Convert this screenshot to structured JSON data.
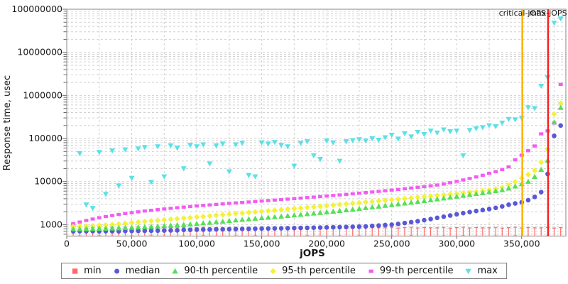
{
  "chart_data": {
    "type": "scatter",
    "title": "",
    "xlabel": "jOPS",
    "ylabel": "Response time, usec",
    "grid": "dashed",
    "legend_position": "bottom",
    "x_axis": {
      "min": 0,
      "max": 384000,
      "major_step": 50000,
      "minor_step": 25000,
      "tick_labels": [
        "0",
        "50,000",
        "100,000",
        "150,000",
        "200,000",
        "250,000",
        "300,000",
        "350,000"
      ]
    },
    "y_axis": {
      "scale": "log",
      "min": 545,
      "max": 100000000,
      "tick_labels": [
        "1000",
        "10000",
        "100000",
        "1000000",
        "10000000",
        "100000000"
      ]
    },
    "annotations": [
      {
        "label": "critical-jOPS",
        "x": 350500,
        "color": "#ffb400"
      },
      {
        "label": "max-jOPS",
        "x": 370300,
        "color": "#fb2020"
      }
    ],
    "x_start": 5000,
    "x_step": 5000,
    "series": [
      {
        "name": "min",
        "marker": "square",
        "plot_marker": "errorbar",
        "color": "#ff6b6b",
        "values": [
          700,
          715,
          690,
          705,
          720,
          695,
          710,
          700,
          700,
          715,
          690,
          705,
          720,
          695,
          710,
          700,
          700,
          715,
          690,
          705,
          720,
          695,
          710,
          700,
          700,
          715,
          690,
          705,
          720,
          695,
          710,
          700,
          700,
          715,
          690,
          705,
          720,
          695,
          710,
          700,
          700,
          715,
          690,
          705,
          720,
          695,
          710,
          700,
          700,
          715,
          690,
          705,
          720,
          695,
          710,
          700,
          700,
          715,
          690,
          705,
          720,
          695,
          710,
          700,
          700,
          715,
          690,
          705,
          720,
          695,
          710,
          700,
          700,
          715,
          690,
          705
        ]
      },
      {
        "name": "median",
        "marker": "circle",
        "plot_marker": "circle",
        "color": "#5858d8",
        "values": [
          700,
          705,
          702,
          708,
          700,
          706,
          703,
          700,
          712,
          715,
          718,
          720,
          723,
          726,
          730,
          734,
          738,
          755,
          760,
          764,
          768,
          772,
          776,
          780,
          785,
          790,
          795,
          800,
          805,
          810,
          814,
          818,
          823,
          828,
          833,
          838,
          844,
          850,
          856,
          862,
          869,
          876,
          884,
          892,
          901,
          910,
          935,
          955,
          978,
          1000,
          1040,
          1090,
          1140,
          1200,
          1270,
          1350,
          1440,
          1530,
          1630,
          1740,
          1850,
          1960,
          2070,
          2180,
          2300,
          2450,
          2650,
          2900,
          3100,
          3300,
          3700,
          4400,
          5700,
          15000,
          115000,
          200000
        ]
      },
      {
        "name": "90-th percentile",
        "marker": "triangle-up",
        "plot_marker": "triangle-up",
        "color": "#55e055",
        "values": [
          790,
          795,
          800,
          805,
          810,
          815,
          825,
          835,
          845,
          860,
          875,
          890,
          905,
          920,
          940,
          960,
          980,
          1005,
          1030,
          1060,
          1090,
          1120,
          1155,
          1190,
          1230,
          1270,
          1310,
          1350,
          1390,
          1430,
          1470,
          1515,
          1560,
          1610,
          1660,
          1715,
          1775,
          1835,
          1895,
          1960,
          2030,
          2105,
          2185,
          2270,
          2360,
          2455,
          2555,
          2660,
          2770,
          2885,
          3005,
          3135,
          3270,
          3415,
          3570,
          3735,
          3910,
          4100,
          4300,
          4510,
          4730,
          4960,
          5200,
          5460,
          5740,
          6050,
          6400,
          7000,
          7800,
          8800,
          10000,
          13000,
          19000,
          31000,
          240000,
          520000
        ]
      },
      {
        "name": "95-th percentile",
        "marker": "diamond",
        "plot_marker": "diamond",
        "color": "#f2f23c",
        "values": [
          900,
          915,
          930,
          945,
          960,
          980,
          1000,
          1030,
          1070,
          1110,
          1150,
          1185,
          1220,
          1255,
          1290,
          1330,
          1370,
          1410,
          1455,
          1500,
          1545,
          1590,
          1640,
          1690,
          1740,
          1795,
          1850,
          1905,
          1965,
          2025,
          2085,
          2150,
          2215,
          2285,
          2355,
          2430,
          2505,
          2585,
          2665,
          2750,
          2835,
          2925,
          3020,
          3115,
          3215,
          3320,
          3425,
          3535,
          3650,
          3770,
          3890,
          4020,
          4150,
          4290,
          4430,
          4580,
          4730,
          4890,
          5060,
          5230,
          5410,
          5600,
          5800,
          6050,
          6350,
          6750,
          7300,
          8200,
          9800,
          12000,
          14500,
          18000,
          28000,
          56000,
          370000,
          650000
        ]
      },
      {
        "name": "99-th percentile",
        "marker": "dash",
        "plot_marker": "rect",
        "color": "#f25cf2",
        "values": [
          1050,
          1150,
          1250,
          1350,
          1450,
          1540,
          1630,
          1720,
          1810,
          1900,
          1985,
          2070,
          2150,
          2230,
          2310,
          2390,
          2470,
          2550,
          2630,
          2710,
          2790,
          2870,
          2950,
          3030,
          3110,
          3190,
          3270,
          3355,
          3440,
          3530,
          3620,
          3715,
          3810,
          3910,
          4015,
          4125,
          4240,
          4360,
          4485,
          4615,
          4750,
          4895,
          5045,
          5200,
          5365,
          5540,
          5725,
          5920,
          6125,
          6340,
          6570,
          6815,
          7075,
          7350,
          7645,
          7960,
          8300,
          8800,
          9400,
          10100,
          10900,
          11800,
          12800,
          14000,
          15500,
          17000,
          19000,
          22000,
          32000,
          41000,
          52000,
          67000,
          128000,
          150000,
          228000,
          1800000
        ]
      },
      {
        "name": "max",
        "marker": "triangle-down",
        "plot_marker": "triangle-down",
        "color": "#5ce0e8",
        "values": [
          850,
          45000,
          2900,
          2400,
          48000,
          5100,
          52000,
          8000,
          55000,
          12000,
          58000,
          62000,
          9700,
          65000,
          13000,
          68000,
          60000,
          20000,
          70000,
          65000,
          72000,
          26000,
          68000,
          75000,
          17000,
          72000,
          78000,
          14000,
          13000,
          80000,
          75000,
          82000,
          70000,
          65000,
          23000,
          78000,
          85000,
          40000,
          33000,
          88000,
          80000,
          30000,
          85000,
          90000,
          95000,
          88000,
          100000,
          92000,
          105000,
          120000,
          98000,
          130000,
          110000,
          140000,
          125000,
          150000,
          135000,
          160000,
          145000,
          150000,
          40000,
          155000,
          170000,
          180000,
          200000,
          190000,
          230000,
          280000,
          274000,
          300000,
          520000,
          500000,
          1650000,
          2600000,
          48000000,
          60000000
        ]
      }
    ]
  },
  "style": {
    "grid_color": "#d0d0d0",
    "border_color": "#9b9b9b",
    "tick_color": "#666666",
    "text_color": "#1a1a1a"
  }
}
